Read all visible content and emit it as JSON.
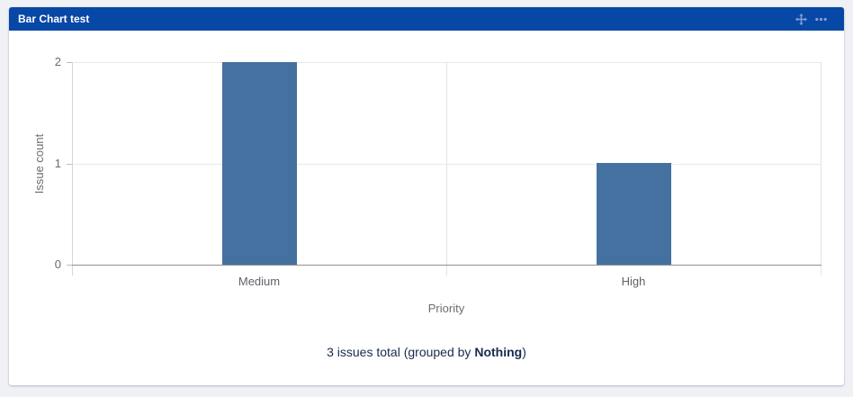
{
  "gadget": {
    "title": "Bar Chart test",
    "header_color": "#0747a6",
    "icons": [
      {
        "name": "move-icon",
        "glyph": "four-direction-arrows"
      },
      {
        "name": "more-options-icon",
        "glyph": "horizontal-ellipsis"
      }
    ]
  },
  "chart_data": {
    "type": "bar",
    "title": "Bar Chart test",
    "categories": [
      "Medium",
      "High"
    ],
    "values": [
      2,
      1
    ],
    "xlabel": "Priority",
    "ylabel": "Issue count",
    "ylim": [
      0,
      2
    ],
    "yticks": [
      0,
      1,
      2
    ],
    "bar_color": "#44719f",
    "grid": true,
    "legend": false
  },
  "summary": {
    "prefix": "3 issues total (grouped by ",
    "group_by": "Nothing",
    "suffix": ")"
  },
  "colors": {
    "page_background": "#f0f1f4",
    "card_background": "#ffffff",
    "header_background": "#0747a6",
    "caption_text": "#172b4d",
    "axis_text": "#6b6b6b"
  }
}
